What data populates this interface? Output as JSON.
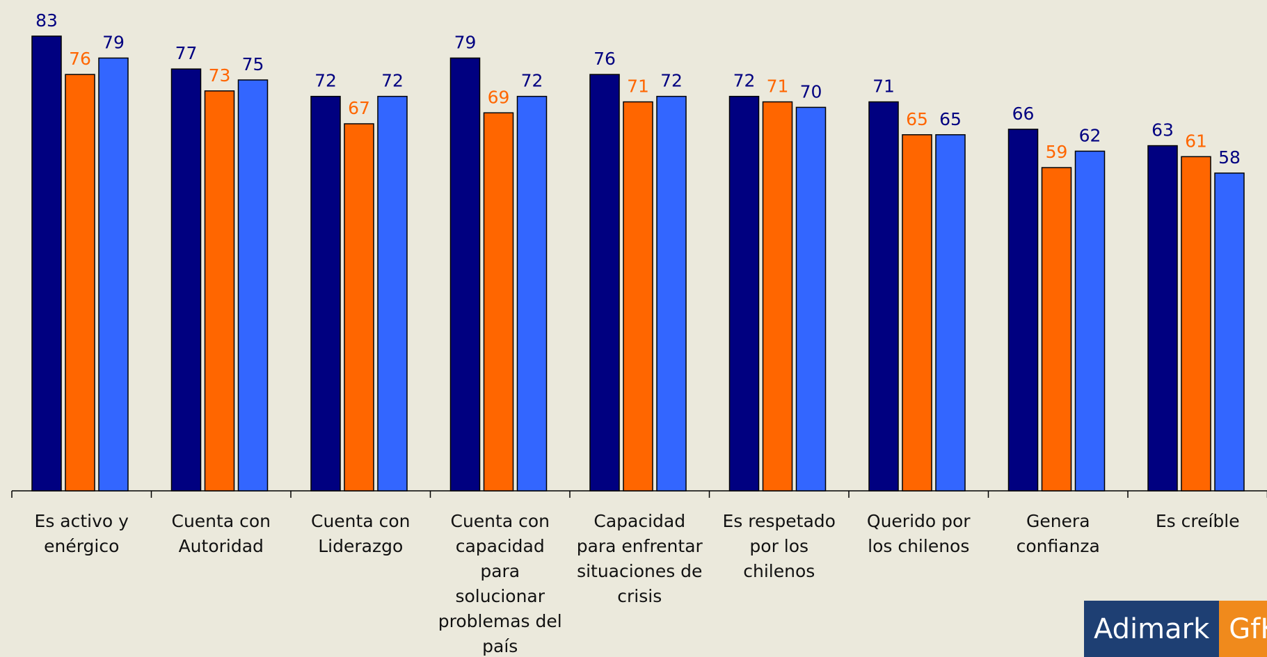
{
  "chart_data": {
    "type": "bar",
    "categories": [
      "Es activo y enérgico",
      "Cuenta con Autoridad",
      "Cuenta con Liderazgo",
      "Cuenta con capacidad para solucionar problemas del país",
      "Capacidad para enfrentar situaciones de crisis",
      "Es respetado por los chilenos",
      "Querido por los chilenos",
      "Genera confianza",
      "Es creíble"
    ],
    "series": [
      {
        "color": "#000080",
        "label_color": "#000080",
        "values": [
          83,
          77,
          72,
          79,
          76,
          72,
          71,
          66,
          63
        ]
      },
      {
        "color": "#ff6600",
        "label_color": "#ff6600",
        "values": [
          76,
          73,
          67,
          69,
          71,
          71,
          65,
          59,
          61
        ]
      },
      {
        "color": "#3366ff",
        "label_color": "#000080",
        "values": [
          79,
          75,
          72,
          72,
          72,
          70,
          65,
          62,
          58
        ]
      }
    ],
    "ylim": [
      0,
      90
    ]
  },
  "logo": {
    "left": "Adimark",
    "right": "GfK"
  }
}
